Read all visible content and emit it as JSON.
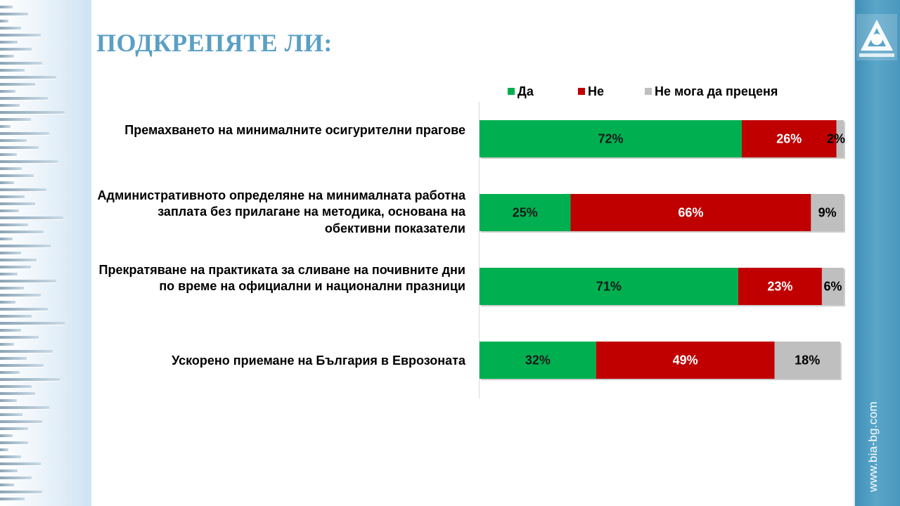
{
  "title": "ПОДКРЕПЯТЕ ЛИ:",
  "website": "www.bia-bg.com",
  "colors": {
    "yes": "#00b050",
    "no": "#c00000",
    "cannot": "#bfbfbf",
    "title": "#5b9fc4",
    "sidebar": "#4a97bd"
  },
  "logo": {
    "icon": "bia-logo-icon"
  },
  "chart_data": {
    "type": "bar",
    "orientation": "horizontal",
    "stacked": true,
    "legend_position": "top",
    "categories": [
      "Премахването на минималните  осигурителни прагове",
      "Административното  определяне на минималната работна заплата без прилагане на методика, основана на обективни показатели",
      "Прекратяване на практиката за сливане на почивните дни по време на официални и национални празници",
      "Ускорено приемане на България в Еврозоната"
    ],
    "series": [
      {
        "name": "Да",
        "color": "#00b050",
        "values": [
          72,
          25,
          71,
          32
        ],
        "labels": [
          "72%",
          "25%",
          "71%",
          "32%"
        ]
      },
      {
        "name": "Не",
        "color": "#c00000",
        "values": [
          26,
          66,
          23,
          49
        ],
        "labels": [
          "26%",
          "66%",
          "23%",
          "49%"
        ]
      },
      {
        "name": "Не мога да преценя",
        "color": "#bfbfbf",
        "values": [
          2,
          9,
          6,
          18
        ],
        "labels": [
          "2%",
          "9%",
          "6%",
          "18%"
        ]
      }
    ],
    "xlim": [
      0,
      100
    ]
  }
}
